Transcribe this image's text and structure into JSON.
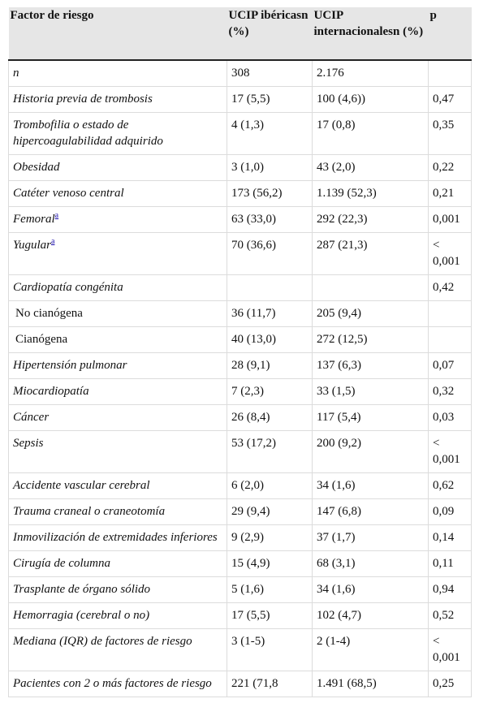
{
  "header": {
    "col_factor": "Factor de riesgo",
    "col_iberica": "UCIP ibéricasn (%)",
    "col_internacional": "UCIP internacionalesn (%)",
    "col_p": "p"
  },
  "rows": [
    {
      "factor": "n",
      "iberica": "308",
      "internacional": "2.176",
      "p": "",
      "sub": false,
      "note": ""
    },
    {
      "factor": "Historia previa de trombosis",
      "iberica": "17 (5,5)",
      "internacional": "100 (4,6))",
      "p": "0,47",
      "sub": false,
      "note": ""
    },
    {
      "factor": "Trombofilia o estado de hipercoagulabilidad adquirido",
      "iberica": "4 (1,3)",
      "internacional": "17 (0,8)",
      "p": "0,35",
      "sub": false,
      "note": ""
    },
    {
      "factor": "Obesidad",
      "iberica": "3 (1,0)",
      "internacional": "43 (2,0)",
      "p": "0,22",
      "sub": false,
      "note": ""
    },
    {
      "factor": "Catéter venoso central",
      "iberica": "173 (56,2)",
      "internacional": "1.139 (52,3)",
      "p": "0,21",
      "sub": false,
      "note": ""
    },
    {
      "factor": "Femoral",
      "iberica": "63 (33,0)",
      "internacional": "292 (22,3)",
      "p": "0,001",
      "sub": false,
      "note": "a"
    },
    {
      "factor": "Yugular",
      "iberica": "70 (36,6)",
      "internacional": "287 (21,3)",
      "p": "< 0,001",
      "sub": false,
      "note": "a"
    },
    {
      "factor": "Cardiopatía congénita",
      "iberica": "",
      "internacional": "",
      "p": "0,42",
      "sub": false,
      "note": ""
    },
    {
      "factor": "No cianógena",
      "iberica": "36 (11,7)",
      "internacional": "205 (9,4)",
      "p": "",
      "sub": true,
      "note": ""
    },
    {
      "factor": "Cianógena",
      "iberica": "40 (13,0)",
      "internacional": "272 (12,5)",
      "p": "",
      "sub": true,
      "note": ""
    },
    {
      "factor": "Hipertensión pulmonar",
      "iberica": "28 (9,1)",
      "internacional": "137 (6,3)",
      "p": "0,07",
      "sub": false,
      "note": ""
    },
    {
      "factor": "Miocardiopatía",
      "iberica": "7 (2,3)",
      "internacional": "33 (1,5)",
      "p": "0,32",
      "sub": false,
      "note": ""
    },
    {
      "factor": "Cáncer",
      "iberica": "26 (8,4)",
      "internacional": "117 (5,4)",
      "p": "0,03",
      "sub": false,
      "note": ""
    },
    {
      "factor": "Sepsis",
      "iberica": "53 (17,2)",
      "internacional": "200 (9,2)",
      "p": "< 0,001",
      "sub": false,
      "note": ""
    },
    {
      "factor": "Accidente vascular cerebral",
      "iberica": "6 (2,0)",
      "internacional": "34 (1,6)",
      "p": "0,62",
      "sub": false,
      "note": ""
    },
    {
      "factor": "Trauma craneal o craneotomía",
      "iberica": "29 (9,4)",
      "internacional": "147 (6,8)",
      "p": "0,09",
      "sub": false,
      "note": ""
    },
    {
      "factor": "Inmovilización de extremidades inferiores",
      "iberica": "9 (2,9)",
      "internacional": "37 (1,7)",
      "p": "0,14",
      "sub": false,
      "note": ""
    },
    {
      "factor": "Cirugía de columna",
      "iberica": "15 (4,9)",
      "internacional": "68 (3,1)",
      "p": "0,11",
      "sub": false,
      "note": ""
    },
    {
      "factor": "Trasplante de órgano sólido",
      "iberica": "5 (1,6)",
      "internacional": "34 (1,6)",
      "p": "0,94",
      "sub": false,
      "note": ""
    },
    {
      "factor": "Hemorragia (cerebral o no)",
      "iberica": "17 (5,5)",
      "internacional": "102 (4,7)",
      "p": "0,52",
      "sub": false,
      "note": ""
    },
    {
      "factor": "Mediana (IQR) de factores de riesgo",
      "iberica": "3 (1-5)",
      "internacional": "2 (1-4)",
      "p": "< 0,001",
      "sub": false,
      "note": ""
    },
    {
      "factor": "Pacientes con 2 o más factores de riesgo",
      "iberica": "221 (71,8",
      "internacional": "1.491 (68,5)",
      "p": "0,25",
      "sub": false,
      "note": ""
    }
  ]
}
